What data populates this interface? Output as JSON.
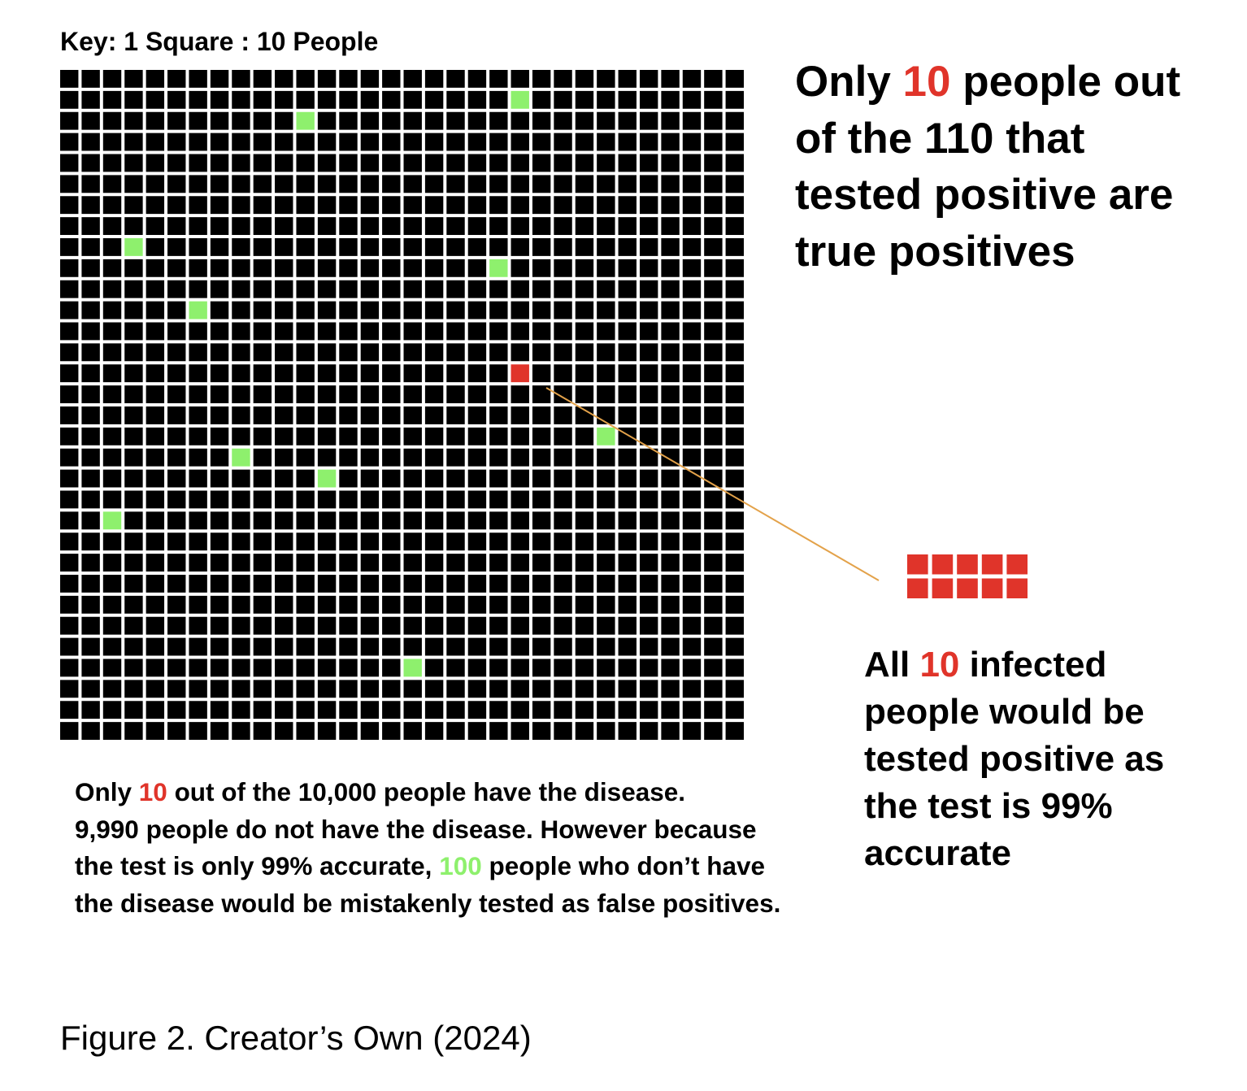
{
  "key_label": "Key: 1 Square : 10 People",
  "grid": {
    "rows": 32,
    "cols": 32,
    "cell_color": "#000000",
    "gap_color": "#ffffff",
    "false_positive_color": "#8ef06d",
    "true_positive_color": "#e0342a",
    "false_positive_cells": [
      [
        1,
        21
      ],
      [
        2,
        11
      ],
      [
        8,
        3
      ],
      [
        9,
        20
      ],
      [
        11,
        6
      ],
      [
        17,
        25
      ],
      [
        18,
        8
      ],
      [
        19,
        12
      ],
      [
        21,
        2
      ],
      [
        28,
        16
      ]
    ],
    "true_positive_cell": [
      14,
      21
    ]
  },
  "headline": {
    "prefix": "Only ",
    "highlight": "10",
    "suffix": " people out of the 110 that tested positive are true positives"
  },
  "infected_block": {
    "count": 10,
    "rows": 2,
    "cols": 5,
    "color": "#e0342a"
  },
  "connector_color": "#e3a24a",
  "right_note": {
    "prefix": "All ",
    "highlight": "10",
    "suffix": " infected people would be tested positive as the test is 99% accurate"
  },
  "bottom_note": {
    "p1_a": "Only ",
    "p1_highlight": "10",
    "p1_b": " out of the 10,000 people have the disease.",
    "p2_a": "9,990 people do not have the disease. However because the test is only 99% accurate, ",
    "p2_highlight": "100",
    "p2_b": " people who don’t have the disease would be mistakenly tested as false positives."
  },
  "caption": "Figure 2. Creator’s Own (2024)"
}
